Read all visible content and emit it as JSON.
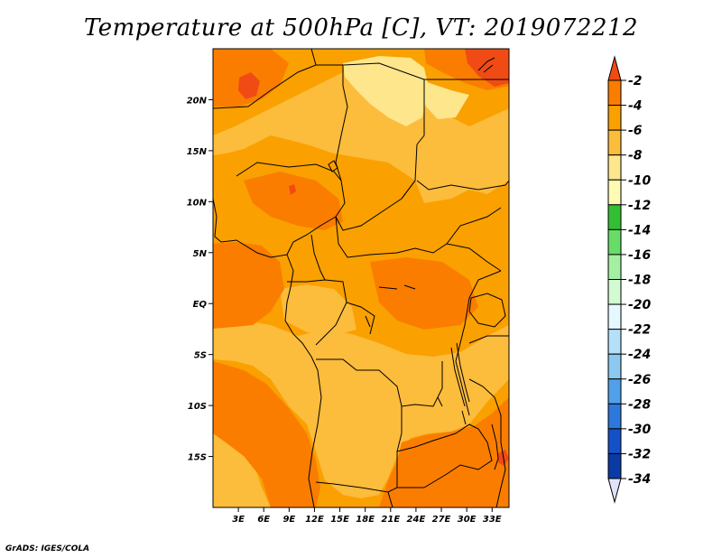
{
  "title": "Temperature at 500hPa [C], VT: 2019072212",
  "credit": "GrADS: IGES/COLA",
  "map": {
    "lon_range": [
      0,
      35
    ],
    "lat_range": [
      -20,
      25
    ],
    "lat_ticks": [
      {
        "v": 20,
        "label": "20N"
      },
      {
        "v": 15,
        "label": "15N"
      },
      {
        "v": 10,
        "label": "10N"
      },
      {
        "v": 5,
        "label": "5N"
      },
      {
        "v": 0,
        "label": "EQ"
      },
      {
        "v": -5,
        "label": "5S"
      },
      {
        "v": -10,
        "label": "10S"
      },
      {
        "v": -15,
        "label": "15S"
      }
    ],
    "lon_ticks": [
      {
        "v": 3,
        "label": "3E"
      },
      {
        "v": 6,
        "label": "6E"
      },
      {
        "v": 9,
        "label": "9E"
      },
      {
        "v": 12,
        "label": "12E"
      },
      {
        "v": 15,
        "label": "15E"
      },
      {
        "v": 18,
        "label": "18E"
      },
      {
        "v": 21,
        "label": "21E"
      },
      {
        "v": 24,
        "label": "24E"
      },
      {
        "v": 27,
        "label": "27E"
      },
      {
        "v": 30,
        "label": "30E"
      },
      {
        "v": 33,
        "label": "33E"
      }
    ]
  },
  "colorbar": {
    "levels": [
      "-2",
      "-4",
      "-6",
      "-8",
      "-10",
      "-12",
      "-14",
      "-16",
      "-18",
      "-20",
      "-22",
      "-24",
      "-26",
      "-28",
      "-30",
      "-32",
      "-34"
    ],
    "colors": [
      "#f04b14",
      "#fa7d00",
      "#faa000",
      "#fcbc3c",
      "#fee68c",
      "#fffab4",
      "#33bf33",
      "#66dd66",
      "#a3f0a3",
      "#d2fbd2",
      "#e6f8ff",
      "#b4e0fa",
      "#8cc8f0",
      "#50a0eb",
      "#2d78dc",
      "#1450c8",
      "#0a3aa6",
      "#0a1e78",
      "#e1e1fa"
    ]
  },
  "colors": {
    "warmest": "#f04b14",
    "warm": "#fa7d00",
    "mid": "#faa000",
    "cool": "#fcbc3c",
    "coolest": "#fee68c"
  }
}
